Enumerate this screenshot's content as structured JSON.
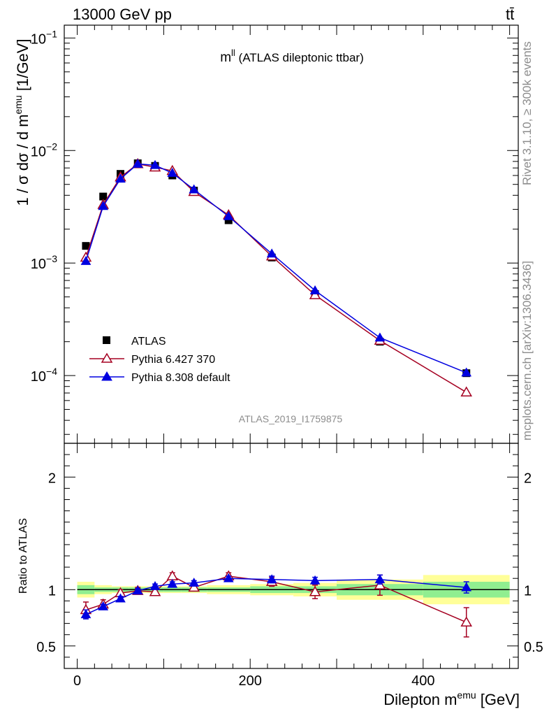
{
  "header": {
    "left": "13000 GeV pp",
    "right": "tt̄"
  },
  "side_text": {
    "rivet": "Rivet 3.1.10, ≥ 300k events",
    "mcplots": "mcplots.cern.ch [arXiv:1306.3436]"
  },
  "chart_data": [
    {
      "type": "scatter",
      "title_main": "m",
      "title_sup": "ll",
      "title_rest": " (ATLAS dileptonic ttbar)",
      "watermark": "ATLAS_2019_I1759875",
      "ylabel": "1 / σ  dσ / d m",
      "ylabel_sup": "emu",
      "ylabel_unit": " [1/GeV]",
      "yscale": "log",
      "ylim": [
        2.5e-05,
        0.13
      ],
      "xlim": [
        -15,
        510
      ],
      "y_tick_labels": [
        {
          "value": 0.1,
          "base": "10",
          "exp": "−1"
        },
        {
          "value": 0.01,
          "base": "10",
          "exp": "−2"
        },
        {
          "value": 0.001,
          "base": "10",
          "exp": "−3"
        },
        {
          "value": 0.0001,
          "base": "10",
          "exp": "−4"
        }
      ],
      "x": [
        10,
        30,
        50,
        70,
        90,
        110,
        135,
        175,
        225,
        275,
        350,
        450
      ],
      "bin_edges": [
        0,
        20,
        40,
        60,
        80,
        100,
        120,
        150,
        200,
        250,
        300,
        400,
        500
      ],
      "series": [
        {
          "name": "ATLAS",
          "marker": "square",
          "color": "#000000",
          "values": [
            0.00142,
            0.0039,
            0.0062,
            0.0077,
            0.0073,
            0.006,
            0.0044,
            0.0024,
            0.00112,
            0.00053,
            0.0002,
            0.000105
          ]
        },
        {
          "name": "Pythia 6.427 370",
          "marker": "open-triangle",
          "color": "#a50021",
          "values": [
            0.00112,
            0.0033,
            0.0058,
            0.0076,
            0.0071,
            0.0066,
            0.0043,
            0.00267,
            0.00115,
            0.00052,
            0.000205,
            7.1e-05
          ]
        },
        {
          "name": "Pythia 8.308 default",
          "marker": "filled-triangle",
          "color": "#0000e0",
          "values": [
            0.00104,
            0.0032,
            0.0056,
            0.0076,
            0.0074,
            0.0063,
            0.0045,
            0.0026,
            0.00121,
            0.00057,
            0.000217,
            0.000106
          ]
        }
      ],
      "legend_placement": "lower-left"
    },
    {
      "type": "scatter",
      "ylabel": "Ratio to ATLAS",
      "xlabel": "Dilepton m",
      "xlabel_sup": "emu",
      "xlabel_unit": " [GeV]",
      "ylim": [
        0.3,
        2.3
      ],
      "xlim": [
        -15,
        510
      ],
      "y_tick_labels": [
        "0.5",
        "1",
        "2"
      ],
      "x_tick_labels": [
        "0",
        "200",
        "400"
      ],
      "x": [
        10,
        30,
        50,
        70,
        90,
        110,
        135,
        175,
        225,
        275,
        350,
        450
      ],
      "series": [
        {
          "name": "Pythia 6.427 370",
          "color": "#a50021",
          "values": [
            0.82,
            0.87,
            0.97,
            0.99,
            0.98,
            1.12,
            1.02,
            1.12,
            1.07,
            0.98,
            1.04,
            0.71
          ],
          "errors": [
            0.07,
            0.04,
            0.03,
            0.03,
            0.03,
            0.03,
            0.02,
            0.03,
            0.04,
            0.06,
            0.09,
            0.13
          ]
        },
        {
          "name": "Pythia 8.308 default",
          "color": "#0000e0",
          "values": [
            0.78,
            0.85,
            0.92,
            0.99,
            1.03,
            1.05,
            1.06,
            1.1,
            1.09,
            1.08,
            1.09,
            1.02
          ],
          "errors": [
            0.04,
            0.02,
            0.02,
            0.02,
            0.02,
            0.02,
            0.02,
            0.02,
            0.03,
            0.03,
            0.04,
            0.05
          ]
        }
      ],
      "band_outer": [
        0.07,
        0.04,
        0.03,
        0.03,
        0.03,
        0.03,
        0.03,
        0.04,
        0.05,
        0.06,
        0.09,
        0.13
      ],
      "band_inner": [
        0.04,
        0.02,
        0.02,
        0.02,
        0.02,
        0.02,
        0.02,
        0.02,
        0.03,
        0.03,
        0.05,
        0.07
      ],
      "colors": {
        "band_outer": "#ffff99",
        "band_inner": "#90ee90",
        "reference": "#000000"
      }
    }
  ]
}
